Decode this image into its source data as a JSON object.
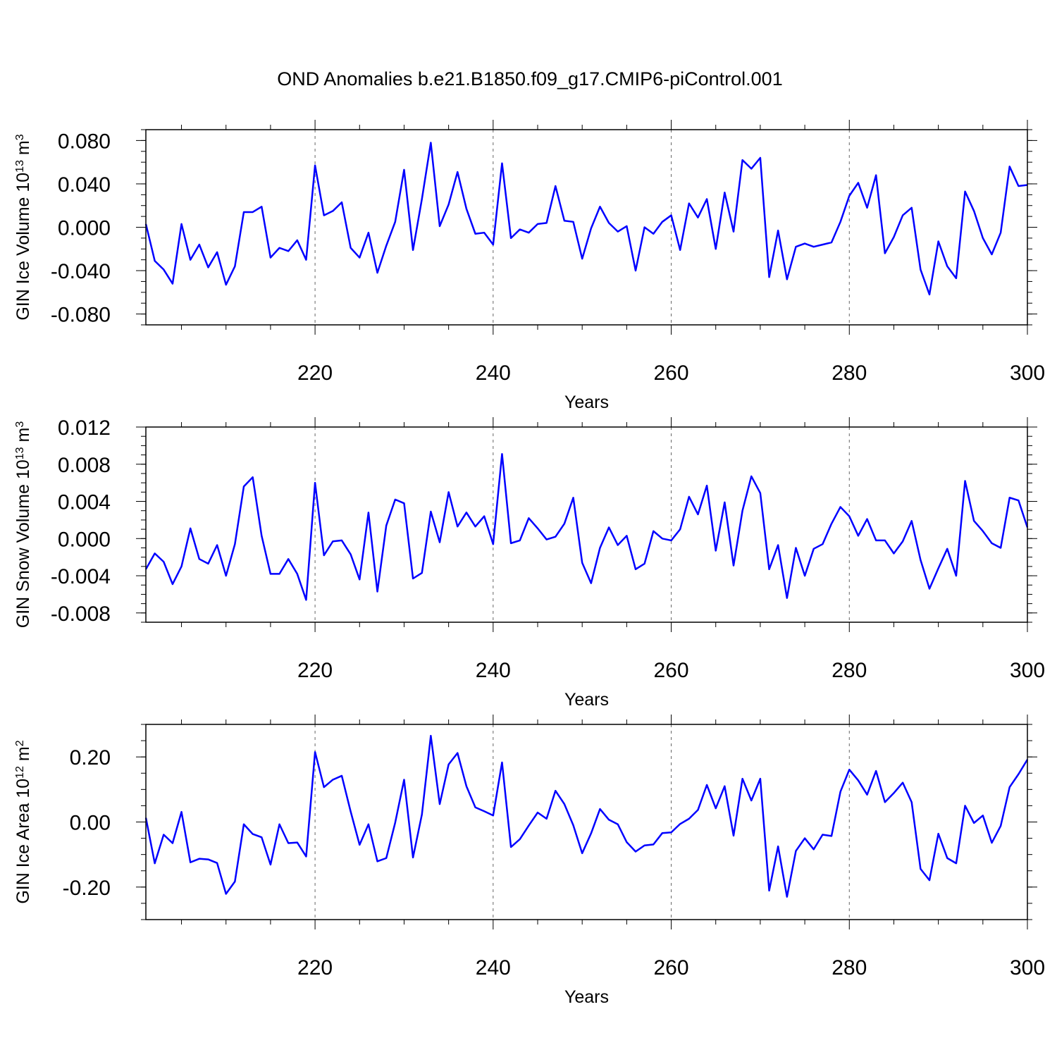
{
  "title": "OND Anomalies b.e21.B1850.f09_g17.CMIP6-piControl.001",
  "colors": {
    "line": "#0000ff",
    "axis": "#000000",
    "gridline": "#666666"
  },
  "chart_data": [
    {
      "type": "line",
      "name": "ice-volume",
      "ylabel": {
        "text": "GIN Ice Volume 10",
        "exp": "13",
        "unit": " m",
        "unit_exp": "3"
      },
      "xlabel": "Years",
      "xlim": [
        201,
        300
      ],
      "ylim": [
        -0.09,
        0.09
      ],
      "xticks": [
        220,
        240,
        260,
        280,
        300
      ],
      "xtick_labels": [
        "220",
        "240",
        "260",
        "280",
        "300"
      ],
      "yticks": [
        -0.08,
        -0.04,
        0.0,
        0.04,
        0.08
      ],
      "ytick_labels": [
        "-0.080",
        "-0.040",
        "0.000",
        "0.040",
        "0.080"
      ],
      "vlines": [
        220,
        240,
        260,
        280
      ],
      "x_start": 201,
      "values": [
        0.003,
        -0.031,
        -0.039,
        -0.052,
        0.003,
        -0.03,
        -0.016,
        -0.037,
        -0.023,
        -0.053,
        -0.036,
        0.014,
        0.014,
        0.019,
        -0.028,
        -0.019,
        -0.022,
        -0.012,
        -0.03,
        0.057,
        0.011,
        0.015,
        0.023,
        -0.019,
        -0.028,
        -0.005,
        -0.042,
        -0.017,
        0.005,
        0.053,
        -0.021,
        0.026,
        0.078,
        0.001,
        0.021,
        0.051,
        0.017,
        -0.006,
        -0.005,
        -0.016,
        0.059,
        -0.01,
        -0.002,
        -0.005,
        0.003,
        0.004,
        0.038,
        0.006,
        0.005,
        -0.029,
        -0.001,
        0.019,
        0.004,
        -0.004,
        0.001,
        -0.04,
        0.0,
        -0.006,
        0.005,
        0.011,
        -0.021,
        0.022,
        0.009,
        0.026,
        -0.02,
        0.032,
        -0.004,
        0.062,
        0.054,
        0.064,
        -0.046,
        -0.003,
        -0.048,
        -0.018,
        -0.015,
        -0.018,
        -0.016,
        -0.014,
        0.005,
        0.029,
        0.041,
        0.018,
        0.048,
        -0.024,
        -0.009,
        0.011,
        0.018,
        -0.039,
        -0.062,
        -0.013,
        -0.036,
        -0.047,
        0.033,
        0.015,
        -0.01,
        -0.025,
        -0.005,
        0.056,
        0.038,
        0.039
      ]
    },
    {
      "type": "line",
      "name": "snow-volume",
      "ylabel": {
        "text": "GIN Snow Volume 10",
        "exp": "13",
        "unit": " m",
        "unit_exp": "3"
      },
      "xlabel": "Years",
      "xlim": [
        201,
        300
      ],
      "ylim": [
        -0.009,
        0.012
      ],
      "xticks": [
        220,
        240,
        260,
        280,
        300
      ],
      "xtick_labels": [
        "220",
        "240",
        "260",
        "280",
        "300"
      ],
      "yticks": [
        -0.008,
        -0.004,
        0.0,
        0.004,
        0.008,
        0.012
      ],
      "ytick_labels": [
        "-0.008",
        "-0.004",
        "0.000",
        "0.004",
        "0.008",
        "0.012"
      ],
      "vlines": [
        220,
        240,
        260,
        280
      ],
      "x_start": 201,
      "values": [
        -0.0033,
        -0.0016,
        -0.0025,
        -0.0049,
        -0.003,
        0.0011,
        -0.0022,
        -0.0027,
        -0.0007,
        -0.004,
        -0.0006,
        0.0056,
        0.0066,
        0.0003,
        -0.0038,
        -0.0038,
        -0.0022,
        -0.0038,
        -0.0066,
        0.006,
        -0.0018,
        -0.0003,
        -0.0002,
        -0.0017,
        -0.0044,
        0.0028,
        -0.0057,
        0.0014,
        0.0042,
        0.0038,
        -0.0043,
        -0.0037,
        0.0029,
        -0.0004,
        0.005,
        0.0013,
        0.0028,
        0.0013,
        0.0024,
        -0.0006,
        0.0091,
        -0.0005,
        -0.0002,
        0.0022,
        0.0011,
        -0.0001,
        0.0002,
        0.0016,
        0.0044,
        -0.0026,
        -0.0048,
        -0.001,
        0.0012,
        -0.0007,
        0.0003,
        -0.0033,
        -0.0027,
        0.0008,
        0.0,
        -0.0002,
        0.001,
        0.0045,
        0.0026,
        0.0057,
        -0.0013,
        0.0039,
        -0.0029,
        0.003,
        0.0067,
        0.0049,
        -0.0033,
        -0.0007,
        -0.0064,
        -0.001,
        -0.004,
        -0.0011,
        -0.0006,
        0.0016,
        0.0034,
        0.0024,
        0.0003,
        0.0021,
        -0.0002,
        -0.0002,
        -0.0016,
        -0.0003,
        0.0019,
        -0.0023,
        -0.0054,
        -0.0032,
        -0.0011,
        -0.004,
        0.0062,
        0.0019,
        0.0008,
        -0.0005,
        -0.001,
        0.0044,
        0.0041,
        0.0012
      ]
    },
    {
      "type": "line",
      "name": "ice-area",
      "ylabel": {
        "text": "GIN Ice Area 10",
        "exp": "12",
        "unit": " m",
        "unit_exp": "2"
      },
      "xlabel": "Years",
      "xlim": [
        201,
        300
      ],
      "ylim": [
        -0.3,
        0.3
      ],
      "xticks": [
        220,
        240,
        260,
        280,
        300
      ],
      "xtick_labels": [
        "220",
        "240",
        "260",
        "280",
        "300"
      ],
      "yticks": [
        -0.2,
        0.0,
        0.2
      ],
      "ytick_labels": [
        "-0.20",
        "0.00",
        "0.20"
      ],
      "vlines": [
        220,
        240,
        260,
        280
      ],
      "x_start": 201,
      "values": [
        0.013,
        -0.127,
        -0.039,
        -0.065,
        0.031,
        -0.124,
        -0.113,
        -0.115,
        -0.126,
        -0.221,
        -0.183,
        -0.007,
        -0.037,
        -0.047,
        -0.131,
        -0.007,
        -0.065,
        -0.063,
        -0.106,
        0.215,
        0.107,
        0.13,
        0.142,
        0.032,
        -0.07,
        -0.007,
        -0.121,
        -0.111,
        -0.002,
        0.13,
        -0.109,
        0.023,
        0.265,
        0.055,
        0.177,
        0.212,
        0.11,
        0.045,
        0.033,
        0.02,
        0.183,
        -0.077,
        -0.053,
        -0.011,
        0.029,
        0.01,
        0.096,
        0.055,
        -0.01,
        -0.096,
        -0.035,
        0.04,
        0.007,
        -0.007,
        -0.062,
        -0.091,
        -0.072,
        -0.069,
        -0.034,
        -0.032,
        -0.006,
        0.01,
        0.037,
        0.114,
        0.042,
        0.11,
        -0.042,
        0.133,
        0.066,
        0.133,
        -0.211,
        -0.075,
        -0.23,
        -0.089,
        -0.05,
        -0.084,
        -0.039,
        -0.043,
        0.093,
        0.161,
        0.128,
        0.084,
        0.157,
        0.061,
        0.089,
        0.121,
        0.061,
        -0.144,
        -0.179,
        -0.036,
        -0.111,
        -0.127,
        0.05,
        -0.003,
        0.02,
        -0.064,
        -0.012,
        0.107,
        0.147,
        0.192
      ]
    }
  ]
}
